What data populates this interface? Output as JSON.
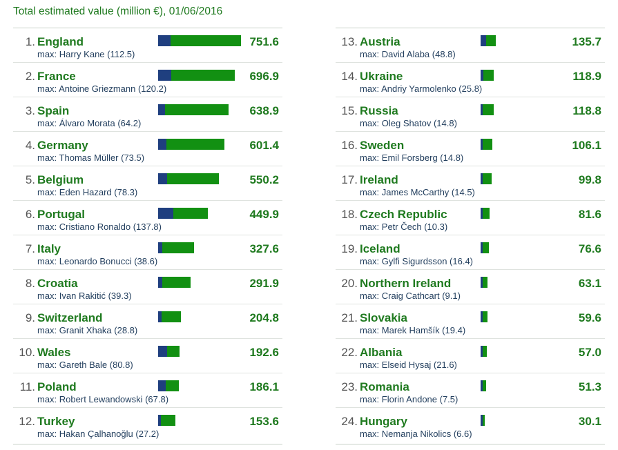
{
  "title": "Total estimated value (million €), 01/06/2016",
  "colors": {
    "player": "#1f3f7f",
    "team": "#129012",
    "text_green": "#1f7a1f"
  },
  "chart_data": {
    "type": "bar",
    "title": "Total estimated value (million €), 01/06/2016",
    "unit": "million €",
    "rows": [
      {
        "rank": "1.",
        "team": "England",
        "player": "max: Harry Kane (112.5)",
        "top": 112.5,
        "total": "751.6"
      },
      {
        "rank": "2.",
        "team": "France",
        "player": "max: Antoine Griezmann (120.2)",
        "top": 120.2,
        "total": "696.9"
      },
      {
        "rank": "3.",
        "team": "Spain",
        "player": "max: Álvaro Morata (64.2)",
        "top": 64.2,
        "total": "638.9"
      },
      {
        "rank": "4.",
        "team": "Germany",
        "player": "max: Thomas Müller (73.5)",
        "top": 73.5,
        "total": "601.4"
      },
      {
        "rank": "5.",
        "team": "Belgium",
        "player": "max: Eden Hazard (78.3)",
        "top": 78.3,
        "total": "550.2"
      },
      {
        "rank": "6.",
        "team": "Portugal",
        "player": "max: Cristiano Ronaldo (137.8)",
        "top": 137.8,
        "total": "449.9"
      },
      {
        "rank": "7.",
        "team": "Italy",
        "player": "max: Leonardo Bonucci (38.6)",
        "top": 38.6,
        "total": "327.6"
      },
      {
        "rank": "8.",
        "team": "Croatia",
        "player": "max: Ivan Rakitić (39.3)",
        "top": 39.3,
        "total": "291.9"
      },
      {
        "rank": "9.",
        "team": "Switzerland",
        "player": "max: Granit Xhaka (28.8)",
        "top": 28.8,
        "total": "204.8"
      },
      {
        "rank": "10.",
        "team": "Wales",
        "player": "max: Gareth Bale (80.8)",
        "top": 80.8,
        "total": "192.6"
      },
      {
        "rank": "11.",
        "team": "Poland",
        "player": "max: Robert Lewandowski (67.8)",
        "top": 67.8,
        "total": "186.1"
      },
      {
        "rank": "12.",
        "team": "Turkey",
        "player": "max: Hakan Çalhanoğlu (27.2)",
        "top": 27.2,
        "total": "153.6"
      },
      {
        "rank": "13.",
        "team": "Austria",
        "player": "max: David Alaba (48.8)",
        "top": 48.8,
        "total": "135.7"
      },
      {
        "rank": "14.",
        "team": "Ukraine",
        "player": "max: Andriy Yarmolenko (25.8)",
        "top": 25.8,
        "total": "118.9"
      },
      {
        "rank": "15.",
        "team": "Russia",
        "player": "max: Oleg Shatov (14.8)",
        "top": 14.8,
        "total": "118.8"
      },
      {
        "rank": "16.",
        "team": "Sweden",
        "player": "max: Emil Forsberg (14.8)",
        "top": 14.8,
        "total": "106.1"
      },
      {
        "rank": "17.",
        "team": "Ireland",
        "player": "max: James McCarthy (14.5)",
        "top": 14.5,
        "total": "99.8"
      },
      {
        "rank": "18.",
        "team": "Czech Republic",
        "player": "max: Petr Čech (10.3)",
        "top": 10.3,
        "total": "81.6"
      },
      {
        "rank": "19.",
        "team": "Iceland",
        "player": "max: Gylfi Sigurdsson (16.4)",
        "top": 16.4,
        "total": "76.6"
      },
      {
        "rank": "20.",
        "team": "Northern Ireland",
        "player": "max: Craig Cathcart (9.1)",
        "top": 9.1,
        "total": "63.1"
      },
      {
        "rank": "21.",
        "team": "Slovakia",
        "player": "max: Marek Hamšík (19.4)",
        "top": 19.4,
        "total": "59.6"
      },
      {
        "rank": "22.",
        "team": "Albania",
        "player": "max: Elseid Hysaj (21.6)",
        "top": 21.6,
        "total": "57.0"
      },
      {
        "rank": "23.",
        "team": "Romania",
        "player": "max: Florin Andone (7.5)",
        "top": 7.5,
        "total": "51.3"
      },
      {
        "rank": "24.",
        "team": "Hungary",
        "player": "max: Nemanja Nikolics (6.6)",
        "top": 6.6,
        "total": "30.1"
      }
    ]
  }
}
